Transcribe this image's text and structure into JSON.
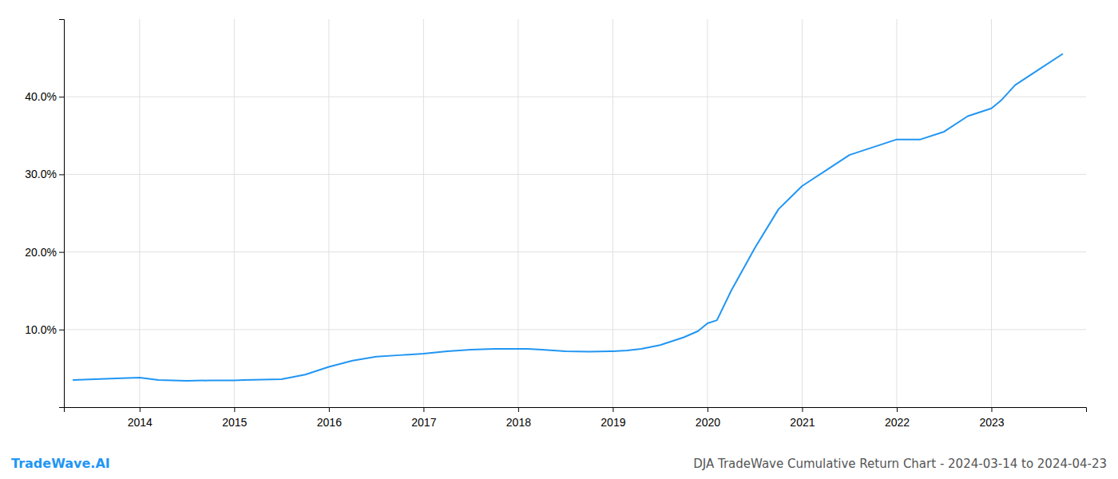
{
  "chart_data": {
    "type": "line",
    "title": "DJA TradeWave Cumulative Return Chart - 2024-03-14 to 2024-04-23",
    "annotations": [
      "TradeWave.AI"
    ],
    "color": "#2196F3",
    "x": [
      2013.3,
      2013.75,
      2014.0,
      2014.2,
      2014.5,
      2014.75,
      2015.0,
      2015.1,
      2015.5,
      2015.75,
      2016.0,
      2016.25,
      2016.5,
      2016.75,
      2017.0,
      2017.25,
      2017.5,
      2017.75,
      2018.0,
      2018.1,
      2018.25,
      2018.5,
      2018.75,
      2019.0,
      2019.15,
      2019.3,
      2019.5,
      2019.75,
      2019.9,
      2020.0,
      2020.1,
      2020.25,
      2020.5,
      2020.75,
      2021.0,
      2021.25,
      2021.5,
      2021.75,
      2022.0,
      2022.1,
      2022.25,
      2022.5,
      2022.75,
      2023.0,
      2023.1,
      2023.25,
      2023.5,
      2023.75
    ],
    "values": [
      3.5,
      3.7,
      3.8,
      3.5,
      3.4,
      3.45,
      3.45,
      3.5,
      3.6,
      4.2,
      5.2,
      6.0,
      6.5,
      6.7,
      6.9,
      7.2,
      7.4,
      7.5,
      7.5,
      7.5,
      7.4,
      7.2,
      7.15,
      7.2,
      7.3,
      7.5,
      8.0,
      9.0,
      9.8,
      10.8,
      11.2,
      15.0,
      20.5,
      25.5,
      28.5,
      30.5,
      32.5,
      33.5,
      34.5,
      34.5,
      34.5,
      35.5,
      37.5,
      38.5,
      39.5,
      41.5,
      43.5,
      45.5
    ],
    "xlim": [
      2013.2,
      2024.0
    ],
    "xticks": [
      2014,
      2015,
      2016,
      2017,
      2018,
      2019,
      2020,
      2021,
      2022,
      2023
    ],
    "ylim": [
      0,
      50
    ],
    "yticks": [
      {
        "value": 10.0,
        "label": "10.0%"
      },
      {
        "value": 20.0,
        "label": "20.0%"
      },
      {
        "value": 30.0,
        "label": "30.0%"
      },
      {
        "value": 40.0,
        "label": "40.0%"
      }
    ],
    "grid": true
  }
}
